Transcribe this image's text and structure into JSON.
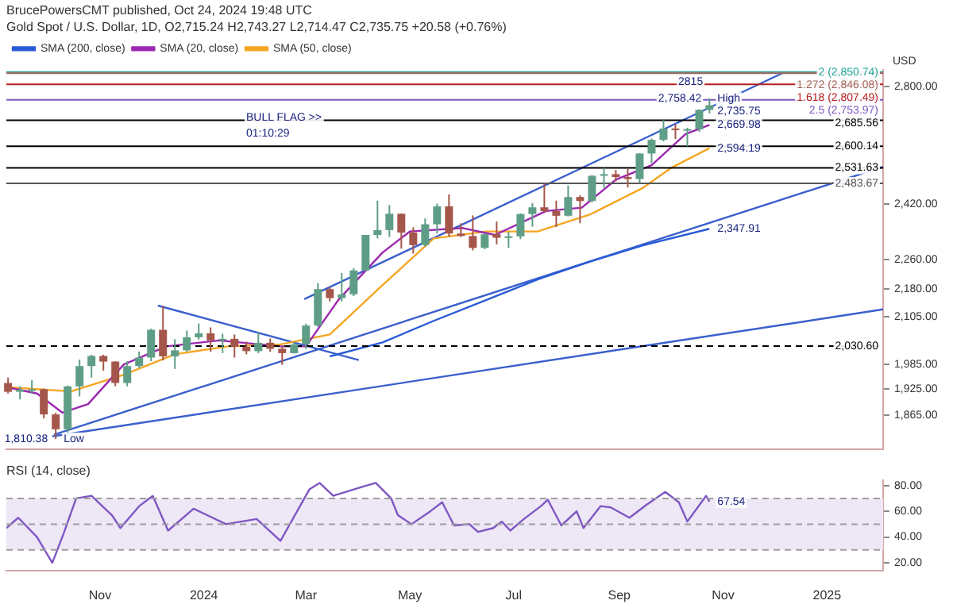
{
  "chart_data": [
    {
      "type": "candlestick",
      "title": "BrucePowersCMT published, Oct 24, 2024 19:48 UTC",
      "subtitle": "Gold Spot / U.S. Dollar, 1D, O2,715.24 H2,743.27 L2,714.47 C2,735.75 +20.58 (+0.76%)",
      "ylabel": "USD",
      "x": [
        "2023-09-08",
        "2023-09-15",
        "2023-09-22",
        "2023-09-29",
        "2023-10-06",
        "2023-10-13",
        "2023-10-20",
        "2023-10-27",
        "2023-11-03",
        "2023-11-10",
        "2023-11-17",
        "2023-11-24",
        "2023-12-01",
        "2023-12-08",
        "2023-12-15",
        "2023-12-22",
        "2023-12-29",
        "2024-01-05",
        "2024-01-12",
        "2024-01-19",
        "2024-01-26",
        "2024-02-02",
        "2024-02-09",
        "2024-02-16",
        "2024-02-23",
        "2024-03-01",
        "2024-03-08",
        "2024-03-15",
        "2024-03-22",
        "2024-03-29",
        "2024-04-05",
        "2024-04-12",
        "2024-04-19",
        "2024-04-26",
        "2024-05-03",
        "2024-05-10",
        "2024-05-17",
        "2024-05-24",
        "2024-05-31",
        "2024-06-07",
        "2024-06-14",
        "2024-06-21",
        "2024-06-28",
        "2024-07-05",
        "2024-07-12",
        "2024-07-19",
        "2024-07-26",
        "2024-08-02",
        "2024-08-09",
        "2024-08-16",
        "2024-08-23",
        "2024-08-30",
        "2024-09-06",
        "2024-09-13",
        "2024-09-20",
        "2024-09-27",
        "2024-10-04",
        "2024-10-11",
        "2024-10-18",
        "2024-10-24"
      ],
      "ohlc": [
        [
          1940,
          1953,
          1915,
          1919
        ],
        [
          1919,
          1932,
          1901,
          1924
        ],
        [
          1924,
          1947,
          1915,
          1925
        ],
        [
          1925,
          1927,
          1857,
          1866
        ],
        [
          1866,
          1870,
          1810.38,
          1832
        ],
        [
          1832,
          1934,
          1823,
          1932
        ],
        [
          1932,
          1997,
          1908,
          1981
        ],
        [
          1981,
          2009,
          1953,
          2006
        ],
        [
          2006,
          2009,
          1970,
          1992
        ],
        [
          1992,
          1993,
          1932,
          1940
        ],
        [
          1940,
          1993,
          1932,
          1981
        ],
        [
          1981,
          2017,
          1976,
          2002
        ],
        [
          2002,
          2075,
          1993,
          2072
        ],
        [
          2072,
          2135,
          1995,
          2005
        ],
        [
          2005,
          2048,
          1974,
          2020
        ],
        [
          2020,
          2070,
          2016,
          2053
        ],
        [
          2053,
          2088,
          2047,
          2063
        ],
        [
          2063,
          2078,
          2016,
          2045
        ],
        [
          2045,
          2062,
          2013,
          2049
        ],
        [
          2049,
          2060,
          2002,
          2029
        ],
        [
          2029,
          2042,
          2010,
          2018
        ],
        [
          2018,
          2066,
          2013,
          2039
        ],
        [
          2039,
          2050,
          2016,
          2024
        ],
        [
          2024,
          2031,
          1984,
          2013
        ],
        [
          2013,
          2041,
          2012,
          2035
        ],
        [
          2035,
          2088,
          2023,
          2083
        ],
        [
          2083,
          2195,
          2079,
          2179
        ],
        [
          2179,
          2185,
          2146,
          2155
        ],
        [
          2155,
          2223,
          2146,
          2165
        ],
        [
          2165,
          2236,
          2160,
          2230
        ],
        [
          2230,
          2330,
          2228,
          2330
        ],
        [
          2330,
          2431,
          2320,
          2344
        ],
        [
          2344,
          2418,
          2324,
          2392
        ],
        [
          2392,
          2393,
          2291,
          2337
        ],
        [
          2337,
          2352,
          2277,
          2301
        ],
        [
          2301,
          2378,
          2297,
          2361
        ],
        [
          2361,
          2422,
          2334,
          2414
        ],
        [
          2414,
          2450,
          2325,
          2334
        ],
        [
          2334,
          2364,
          2324,
          2327
        ],
        [
          2327,
          2387,
          2286,
          2293
        ],
        [
          2293,
          2335,
          2289,
          2332
        ],
        [
          2332,
          2369,
          2303,
          2322
        ],
        [
          2322,
          2339,
          2293,
          2326
        ],
        [
          2326,
          2393,
          2318,
          2391
        ],
        [
          2391,
          2424,
          2354,
          2411
        ],
        [
          2411,
          2483,
          2394,
          2400
        ],
        [
          2400,
          2431,
          2353,
          2386
        ],
        [
          2386,
          2477,
          2384,
          2442
        ],
        [
          2442,
          2447,
          2364,
          2430
        ],
        [
          2430,
          2509,
          2426,
          2507
        ],
        [
          2507,
          2531.63,
          2470,
          2512
        ],
        [
          2512,
          2525,
          2490,
          2503
        ],
        [
          2503,
          2529,
          2471,
          2497
        ],
        [
          2497,
          2578,
          2485,
          2577
        ],
        [
          2577,
          2625,
          2546,
          2621
        ],
        [
          2621,
          2685.56,
          2616,
          2658
        ],
        [
          2658,
          2672,
          2624,
          2653
        ],
        [
          2653,
          2660,
          2600.14,
          2656
        ],
        [
          2656,
          2722,
          2647,
          2720
        ],
        [
          2720,
          2758.42,
          2708,
          2735.75
        ]
      ],
      "colors": [
        "#a5564b",
        "#5f9e86",
        "#5f9e86",
        "#a5564b",
        "#a5564b",
        "#5f9e86",
        "#5f9e86",
        "#5f9e86",
        "#a5564b",
        "#a5564b",
        "#5f9e86",
        "#5f9e86",
        "#5f9e86",
        "#a5564b",
        "#5f9e86",
        "#5f9e86",
        "#5f9e86",
        "#a5564b",
        "#5f9e86",
        "#a5564b",
        "#a5564b",
        "#5f9e86",
        "#a5564b",
        "#a5564b",
        "#5f9e86",
        "#5f9e86",
        "#5f9e86",
        "#a5564b",
        "#5f9e86",
        "#5f9e86",
        "#5f9e86",
        "#5f9e86",
        "#5f9e86",
        "#a5564b",
        "#a5564b",
        "#5f9e86",
        "#5f9e86",
        "#a5564b",
        "#a5564b",
        "#a5564b",
        "#5f9e86",
        "#a5564b",
        "#5f9e86",
        "#5f9e86",
        "#5f9e86",
        "#a5564b",
        "#a5564b",
        "#5f9e86",
        "#a5564b",
        "#5f9e86",
        "#5f9e86",
        "#a5564b",
        "#a5564b",
        "#5f9e86",
        "#5f9e86",
        "#5f9e86",
        "#a5564b",
        "#5f9e86",
        "#5f9e86",
        "#5f9e86"
      ],
      "series": [
        {
          "type": "line",
          "name": "SMA (200, close)",
          "color": "#2a5bd7",
          "x": [
            "2024-03-15",
            "2024-04-15",
            "2024-05-15",
            "2024-06-15",
            "2024-07-15",
            "2024-08-15",
            "2024-09-15",
            "2024-10-24"
          ],
          "values": [
            2005,
            2040,
            2095,
            2150,
            2205,
            2255,
            2300,
            2347.91
          ]
        },
        {
          "type": "line",
          "name": "SMA (20, close)",
          "color": "#9c27b0",
          "x": [
            "2023-09-07",
            "2023-09-25",
            "2023-10-10",
            "2023-10-25",
            "2023-11-15",
            "2023-12-10",
            "2024-01-10",
            "2024-02-15",
            "2024-03-01",
            "2024-03-20",
            "2024-04-15",
            "2024-05-01",
            "2024-06-01",
            "2024-06-20",
            "2024-07-20",
            "2024-08-10",
            "2024-08-30",
            "2024-09-20",
            "2024-10-10",
            "2024-10-24"
          ],
          "values": [
            1930,
            1915,
            1870,
            1890,
            1985,
            2030,
            2045,
            2030,
            2030,
            2150,
            2280,
            2340,
            2350,
            2330,
            2400,
            2410,
            2495,
            2540,
            2640,
            2669.98
          ]
        },
        {
          "type": "line",
          "name": "SMA (50, close)",
          "color": "#f5a623",
          "x": [
            "2023-09-07",
            "2023-10-15",
            "2023-11-15",
            "2023-12-15",
            "2024-01-15",
            "2024-02-15",
            "2024-03-15",
            "2024-04-15",
            "2024-05-15",
            "2024-06-15",
            "2024-07-15",
            "2024-08-15",
            "2024-09-15",
            "2024-10-01",
            "2024-10-24"
          ],
          "values": [
            1930,
            1920,
            1960,
            2010,
            2030,
            2035,
            2060,
            2190,
            2320,
            2340,
            2340,
            2390,
            2470,
            2530,
            2594.19
          ]
        },
        {
          "type": "line",
          "color": "#3a5fcd",
          "x": [
            "2024-02-29",
            "2024-12-06"
          ],
          "values": [
            2152,
            2847
          ]
        },
        {
          "type": "line",
          "color": "#3a5fcd",
          "x": [
            "2023-10-04",
            "2025-02-03"
          ],
          "values": [
            1816,
            2125
          ]
        },
        {
          "type": "line",
          "color": "#3a5fcd",
          "x": [
            "2023-10-05",
            "2025-02-03"
          ],
          "values": [
            1820,
            2535
          ]
        },
        {
          "type": "line",
          "color": "#3a5fcd",
          "x": [
            "2023-12-05",
            "2024-04-01"
          ],
          "values": [
            2135,
            1996
          ]
        }
      ],
      "xlim": [
        "2023-09-07",
        "2025-02-03"
      ],
      "ylim": [
        1788,
        2857
      ],
      "log": true,
      "yticks": [
        {
          "value": 1865,
          "label": "1,865.00"
        },
        {
          "value": 1925,
          "label": "1,925.00"
        },
        {
          "value": 1985,
          "label": "1,985.00"
        },
        {
          "value": 2105,
          "label": "2,105.00"
        },
        {
          "value": 2180,
          "label": "2,180.00"
        },
        {
          "value": 2260,
          "label": "2,260.00"
        },
        {
          "value": 2420,
          "label": "2,420.00"
        },
        {
          "value": 2800,
          "label": "2,800.00"
        }
      ],
      "tick_labels": "y",
      "legend": "top left",
      "marker": "none",
      "ref_lines": [
        {
          "axis": "y",
          "value": 2850.74,
          "label": "2 (2,850.74)",
          "color": "#26a69a"
        },
        {
          "axis": "y",
          "value": 2846.08,
          "label": "1.272 (2,846.08)",
          "color": "#a0655a"
        },
        {
          "axis": "y",
          "value": 2807.49,
          "label": "1.618 (2,807.49)",
          "color": "#b71c1c"
        },
        {
          "axis": "y",
          "value": 2753.97,
          "label": "2.5 (2,753.97)",
          "color": "#7e57c2"
        },
        {
          "axis": "y",
          "value": 2685.56,
          "label": "2,685.56",
          "color": "#000000"
        },
        {
          "axis": "y",
          "value": 2600.14,
          "label": "2,600.14",
          "color": "#000000"
        },
        {
          "axis": "y",
          "value": 2531.63,
          "label": "2,531.63",
          "color": "#000000"
        },
        {
          "axis": "y",
          "value": 2483.67,
          "label": "2,483.67",
          "color": "#555555"
        },
        {
          "axis": "y",
          "value": 2030.6,
          "label": "2,030.60",
          "color": "#000000",
          "line_style": "dashed"
        }
      ],
      "annotations": [
        "BULL FLAG >>",
        "01:10:29",
        {
          "text": "2815",
          "x": "2024-10-01",
          "y": 2815
        },
        {
          "text": "High",
          "x": "2024-10-24",
          "y": 2758.42
        },
        {
          "text": "2,758.42",
          "x": "2024-10-24",
          "y": 2758.42
        },
        {
          "text": "2,735.75",
          "x": "2024-10-24",
          "y": 2735.75
        },
        {
          "text": "2,669.98",
          "x": "2024-10-24",
          "y": 2669.98
        },
        {
          "text": "2,594.19",
          "x": "2024-10-24",
          "y": 2594.19
        },
        {
          "text": "2,347.91",
          "x": "2024-10-24",
          "y": 2347.91
        },
        {
          "text": "Low",
          "x": "2023-10-06",
          "y": 1810.38
        },
        {
          "text": "1,810.38",
          "x": "2023-10-06",
          "y": 1810.38
        }
      ]
    },
    {
      "type": "line",
      "title": "RSI (14, close)",
      "x": [
        "2023-09-07",
        "2023-09-14",
        "2023-09-25",
        "2023-10-04",
        "2023-10-11",
        "2023-10-18",
        "2023-10-27",
        "2023-11-08",
        "2023-11-13",
        "2023-11-24",
        "2023-12-02",
        "2023-12-11",
        "2023-12-26",
        "2024-01-14",
        "2024-02-01",
        "2024-02-15",
        "2024-03-03",
        "2024-03-09",
        "2024-03-17",
        "2024-04-03",
        "2024-04-11",
        "2024-04-20",
        "2024-04-24",
        "2024-05-02",
        "2024-05-13",
        "2024-05-20",
        "2024-05-27",
        "2024-06-05",
        "2024-06-10",
        "2024-06-19",
        "2024-06-24",
        "2024-06-29",
        "2024-07-07",
        "2024-07-17",
        "2024-07-21",
        "2024-07-29",
        "2024-08-07",
        "2024-08-11",
        "2024-08-21",
        "2024-08-27",
        "2024-09-07",
        "2024-09-17",
        "2024-09-28",
        "2024-10-06",
        "2024-10-11",
        "2024-10-22",
        "2024-10-24"
      ],
      "series": [
        {
          "color": "#7e57c2",
          "values": [
            47,
            55,
            40,
            20,
            44,
            70,
            72,
            57,
            47,
            64,
            72,
            45,
            62,
            50,
            54,
            37,
            77,
            82,
            72,
            79,
            82,
            70,
            57,
            50,
            60,
            67,
            49,
            50,
            44,
            47,
            52,
            45,
            54,
            64,
            69,
            49,
            60,
            47,
            64,
            63,
            55,
            65,
            75,
            67,
            52,
            72,
            67.54
          ]
        }
      ],
      "xlim": [
        "2023-09-07",
        "2025-02-03"
      ],
      "xticks": [
        {
          "value": "2023-11-01",
          "label": "Nov"
        },
        {
          "value": "2024-01-01",
          "label": "2024"
        },
        {
          "value": "2024-03-01",
          "label": "Mar"
        },
        {
          "value": "2024-05-01",
          "label": "May"
        },
        {
          "value": "2024-07-01",
          "label": "Jul"
        },
        {
          "value": "2024-09-01",
          "label": "Sep"
        },
        {
          "value": "2024-11-01",
          "label": "Nov"
        },
        {
          "value": "2025-01-01",
          "label": "2025"
        }
      ],
      "ylim": [
        14,
        84
      ],
      "yticks": [
        {
          "value": 20,
          "label": "20.00"
        },
        {
          "value": 40,
          "label": "40.00"
        },
        {
          "value": 60,
          "label": "60.00"
        },
        {
          "value": 80,
          "label": "80.00"
        }
      ],
      "marker": "none",
      "bands": [
        {
          "axis": "y",
          "from": 30,
          "to": 70,
          "color": "#ede7f6"
        }
      ],
      "ref_lines": [
        {
          "axis": "y",
          "value": 70,
          "color": "#9e9e9e",
          "line_style": "dashed"
        },
        {
          "axis": "y",
          "value": 50,
          "color": "#9e9e9e",
          "line_style": "dashed"
        },
        {
          "axis": "y",
          "value": 30,
          "color": "#9e9e9e",
          "line_style": "dashed"
        }
      ],
      "annotations": [
        {
          "text": "67.54",
          "x": "2024-10-24",
          "y": 67.54
        }
      ]
    }
  ]
}
